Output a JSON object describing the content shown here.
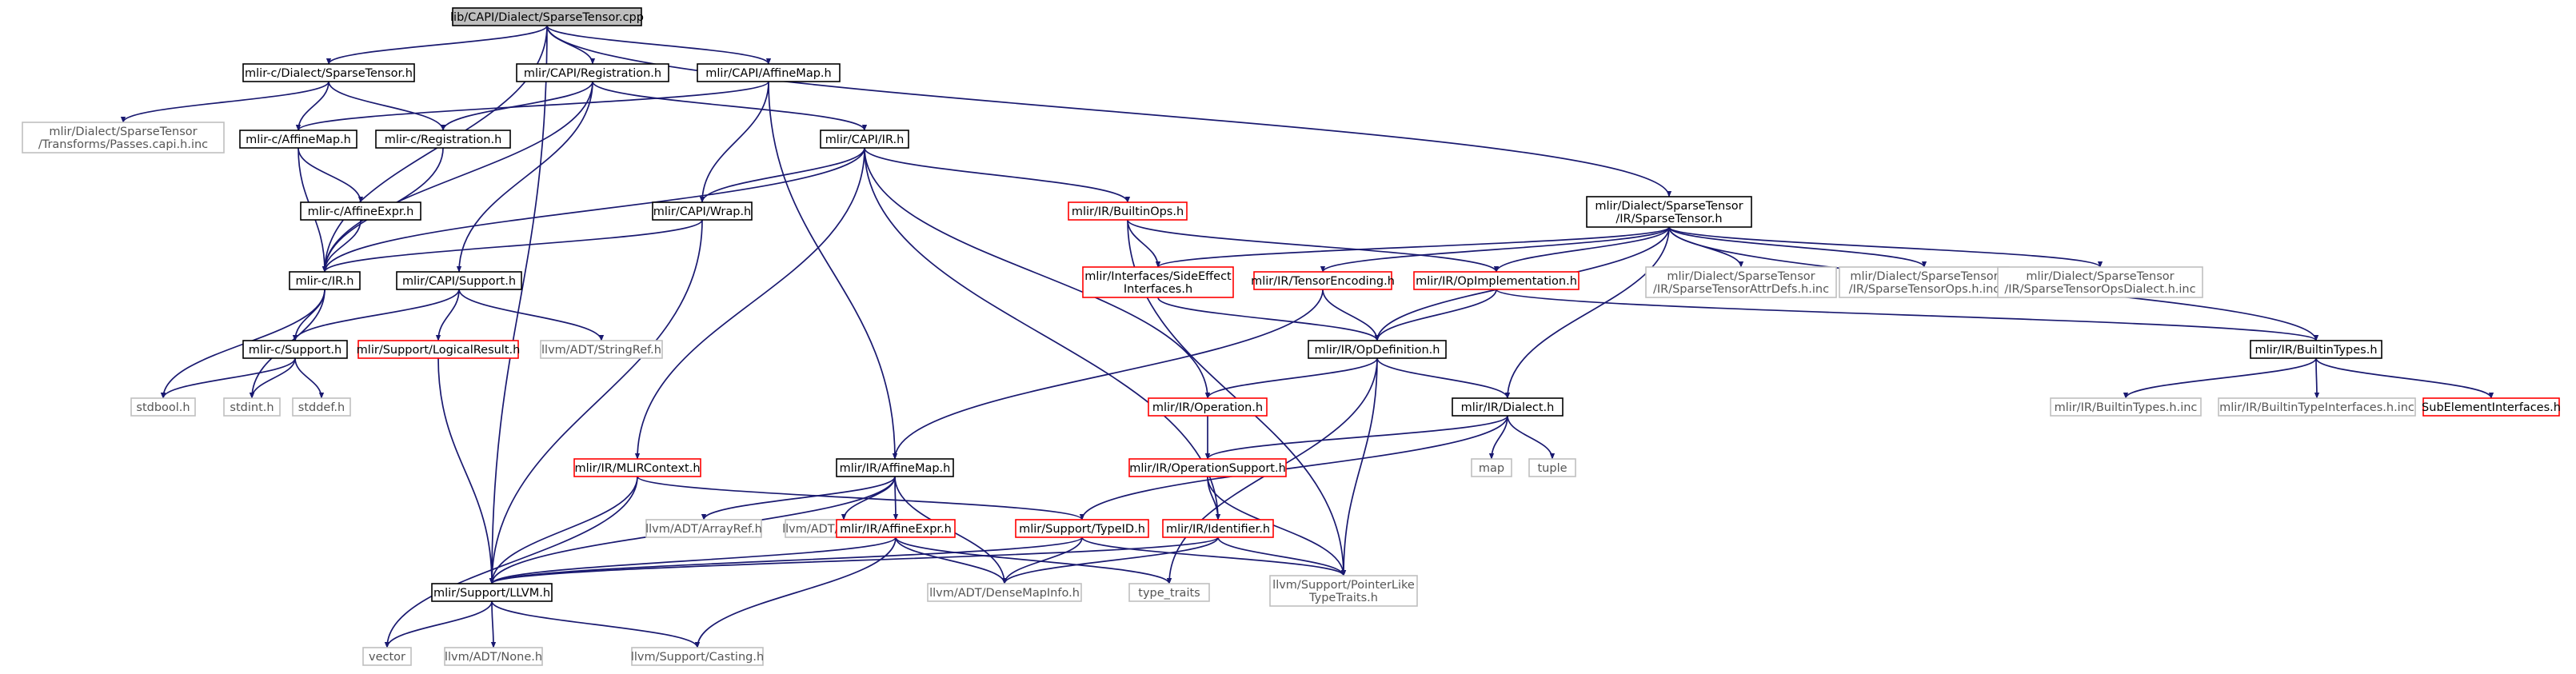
{
  "graph": {
    "nodes": [
      {
        "id": "root",
        "kind": "root",
        "lines": [
          "lib/CAPI/Dialect/SparseTensor.cpp"
        ]
      },
      {
        "id": "c_dialect_st",
        "kind": "normal",
        "lines": [
          "mlir-c/Dialect/SparseTensor.h"
        ]
      },
      {
        "id": "capi_registration",
        "kind": "normal",
        "lines": [
          "mlir/CAPI/Registration.h"
        ]
      },
      {
        "id": "capi_affinemap",
        "kind": "normal",
        "lines": [
          "mlir/CAPI/AffineMap.h"
        ]
      },
      {
        "id": "passes_inc",
        "kind": "missing",
        "lines": [
          "mlir/Dialect/SparseTensor",
          "/Transforms/Passes.capi.h.inc"
        ]
      },
      {
        "id": "c_affinemap",
        "kind": "normal",
        "lines": [
          "mlir-c/AffineMap.h"
        ]
      },
      {
        "id": "c_registration",
        "kind": "normal",
        "lines": [
          "mlir-c/Registration.h"
        ]
      },
      {
        "id": "capi_ir",
        "kind": "normal",
        "lines": [
          "mlir/CAPI/IR.h"
        ]
      },
      {
        "id": "c_affineexpr",
        "kind": "normal",
        "lines": [
          "mlir-c/AffineExpr.h"
        ]
      },
      {
        "id": "capi_wrap",
        "kind": "normal",
        "lines": [
          "mlir/CAPI/Wrap.h"
        ]
      },
      {
        "id": "builtinops",
        "kind": "truncated",
        "lines": [
          "mlir/IR/BuiltinOps.h"
        ]
      },
      {
        "id": "dialect_st",
        "kind": "normal",
        "lines": [
          "mlir/Dialect/SparseTensor",
          "/IR/SparseTensor.h"
        ]
      },
      {
        "id": "c_ir",
        "kind": "normal",
        "lines": [
          "mlir-c/IR.h"
        ]
      },
      {
        "id": "capi_support",
        "kind": "normal",
        "lines": [
          "mlir/CAPI/Support.h"
        ]
      },
      {
        "id": "sideeffect",
        "kind": "truncated",
        "lines": [
          "mlir/Interfaces/SideEffect",
          "Interfaces.h"
        ]
      },
      {
        "id": "tensorencoding",
        "kind": "truncated",
        "lines": [
          "mlir/IR/TensorEncoding.h"
        ]
      },
      {
        "id": "opimpl",
        "kind": "truncated",
        "lines": [
          "mlir/IR/OpImplementation.h"
        ]
      },
      {
        "id": "attrdefs_inc",
        "kind": "missing",
        "lines": [
          "mlir/Dialect/SparseTensor",
          "/IR/SparseTensorAttrDefs.h.inc"
        ]
      },
      {
        "id": "ops_inc",
        "kind": "missing",
        "lines": [
          "mlir/Dialect/SparseTensor",
          "/IR/SparseTensorOps.h.inc"
        ]
      },
      {
        "id": "opsdialect_inc",
        "kind": "missing",
        "lines": [
          "mlir/Dialect/SparseTensor",
          "/IR/SparseTensorOpsDialect.h.inc"
        ]
      },
      {
        "id": "c_support",
        "kind": "normal",
        "lines": [
          "mlir-c/Support.h"
        ]
      },
      {
        "id": "logicalresult",
        "kind": "truncated",
        "lines": [
          "mlir/Support/LogicalResult.h"
        ]
      },
      {
        "id": "stringref",
        "kind": "missing",
        "lines": [
          "llvm/ADT/StringRef.h"
        ]
      },
      {
        "id": "opdefinition",
        "kind": "normal",
        "lines": [
          "mlir/IR/OpDefinition.h"
        ]
      },
      {
        "id": "builtintypes",
        "kind": "normal",
        "lines": [
          "mlir/IR/BuiltinTypes.h"
        ]
      },
      {
        "id": "stdbool",
        "kind": "missing",
        "lines": [
          "stdbool.h"
        ]
      },
      {
        "id": "stdint",
        "kind": "missing",
        "lines": [
          "stdint.h"
        ]
      },
      {
        "id": "stddef",
        "kind": "missing",
        "lines": [
          "stddef.h"
        ]
      },
      {
        "id": "operation",
        "kind": "truncated",
        "lines": [
          "mlir/IR/Operation.h"
        ]
      },
      {
        "id": "dialect",
        "kind": "normal",
        "lines": [
          "mlir/IR/Dialect.h"
        ]
      },
      {
        "id": "builtintypes_inc",
        "kind": "missing",
        "lines": [
          "mlir/IR/BuiltinTypes.h.inc"
        ]
      },
      {
        "id": "builtintypeifaces_inc",
        "kind": "missing",
        "lines": [
          "mlir/IR/BuiltinTypeInterfaces.h.inc"
        ]
      },
      {
        "id": "subelementifaces",
        "kind": "truncated",
        "lines": [
          "SubElementInterfaces.h"
        ]
      },
      {
        "id": "map",
        "kind": "missing",
        "lines": [
          "map"
        ]
      },
      {
        "id": "tuple",
        "kind": "missing",
        "lines": [
          "tuple"
        ]
      },
      {
        "id": "mlircontext",
        "kind": "truncated",
        "lines": [
          "mlir/IR/MLIRContext.h"
        ]
      },
      {
        "id": "affinemap_ir",
        "kind": "normal",
        "lines": [
          "mlir/IR/AffineMap.h"
        ]
      },
      {
        "id": "opsupport",
        "kind": "truncated",
        "lines": [
          "mlir/IR/OperationSupport.h"
        ]
      },
      {
        "id": "arrayref",
        "kind": "missing",
        "lines": [
          "llvm/ADT/ArrayRef.h"
        ]
      },
      {
        "id": "denseset",
        "kind": "missing",
        "lines": [
          "llvm/ADT/DenseSet.h"
        ]
      },
      {
        "id": "affineexpr_ir",
        "kind": "truncated",
        "lines": [
          "mlir/IR/AffineExpr.h"
        ]
      },
      {
        "id": "typeid",
        "kind": "truncated",
        "lines": [
          "mlir/Support/TypeID.h"
        ]
      },
      {
        "id": "identifier",
        "kind": "truncated",
        "lines": [
          "mlir/IR/Identifier.h"
        ]
      },
      {
        "id": "llvm_h",
        "kind": "normal",
        "lines": [
          "mlir/Support/LLVM.h"
        ]
      },
      {
        "id": "densemapinfo",
        "kind": "missing",
        "lines": [
          "llvm/ADT/DenseMapInfo.h"
        ]
      },
      {
        "id": "type_traits",
        "kind": "missing",
        "lines": [
          "type_traits"
        ]
      },
      {
        "id": "pointerlike",
        "kind": "missing",
        "lines": [
          "llvm/Support/PointerLike",
          "TypeTraits.h"
        ]
      },
      {
        "id": "vector",
        "kind": "missing",
        "lines": [
          "vector"
        ]
      },
      {
        "id": "none",
        "kind": "missing",
        "lines": [
          "llvm/ADT/None.h"
        ]
      },
      {
        "id": "casting",
        "kind": "missing",
        "lines": [
          "llvm/Support/Casting.h"
        ]
      }
    ],
    "colors": {
      "edge": "#191970",
      "node_border": "#000000",
      "root_fill": "#bfbfbf",
      "missing_border": "#bfbfbf",
      "truncated_border": "#ff0000"
    }
  }
}
